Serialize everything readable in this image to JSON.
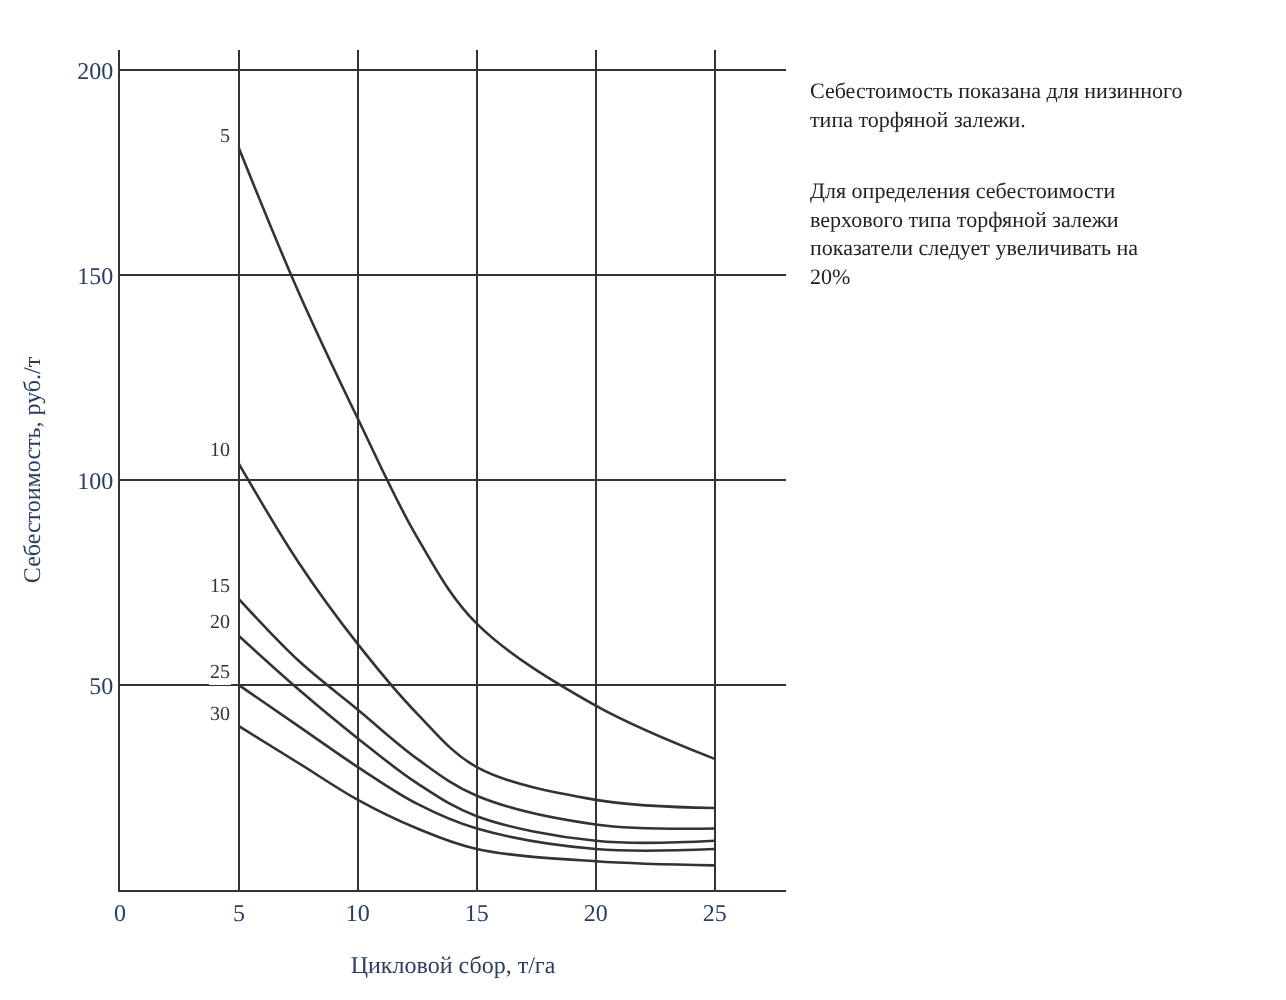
{
  "chart_data": {
    "type": "line",
    "xlabel": "Цикловой сбор, т/га",
    "ylabel": "Себестоимость, руб./т",
    "x": [
      5,
      7.5,
      10,
      12.5,
      15,
      20,
      25
    ],
    "series": [
      {
        "name": "5",
        "color": "#333333",
        "values": [
          181,
          146,
          115,
          86,
          65,
          45,
          32
        ]
      },
      {
        "name": "10",
        "color": "#333333",
        "values": [
          104,
          80,
          60,
          43,
          30,
          22,
          20
        ]
      },
      {
        "name": "15",
        "color": "#333333",
        "values": [
          71,
          56,
          44,
          32,
          23,
          16,
          15
        ]
      },
      {
        "name": "20",
        "color": "#333333",
        "values": [
          62,
          49,
          37,
          26,
          18,
          12,
          12
        ]
      },
      {
        "name": "25",
        "color": "#333333",
        "values": [
          50,
          40,
          30,
          21,
          15,
          10,
          10
        ]
      },
      {
        "name": "30",
        "color": "#333333",
        "values": [
          40,
          31,
          22,
          15,
          10,
          7,
          6
        ]
      }
    ],
    "xlim": [
      0,
      28
    ],
    "ylim": [
      0,
      205
    ],
    "xticks": [
      0,
      5,
      10,
      15,
      20,
      25
    ],
    "yticks": [
      50,
      100,
      150,
      200
    ],
    "grid": true,
    "legend": false,
    "marker": "none",
    "line_style": "solid",
    "annotations": [
      "Себестоимость показана для низинного типа торфяной залежи.",
      "Для определения себестоимости верхового типа торфяной залежи показатели следует увеличивать на 20%"
    ]
  }
}
